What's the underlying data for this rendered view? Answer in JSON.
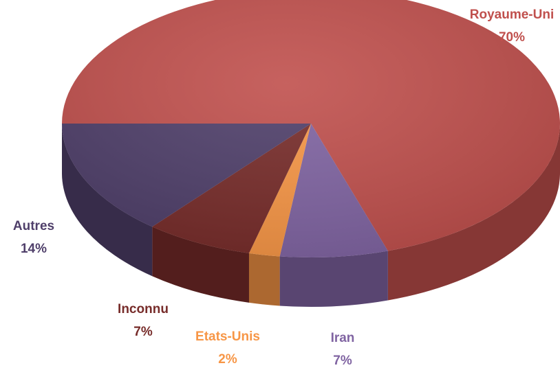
{
  "chart_data": {
    "type": "pie",
    "categories": [
      "Royaume-Uni",
      "Iran",
      "Etats-Unis",
      "Inconnu",
      "Autres"
    ],
    "values": [
      70,
      7,
      2,
      7,
      14
    ],
    "value_labels": [
      "70%",
      "7%",
      "2%",
      "7%",
      "14%"
    ],
    "colors": [
      "#c0504d",
      "#8064a2",
      "#f79646",
      "#772c2a",
      "#4f3f6a"
    ]
  }
}
